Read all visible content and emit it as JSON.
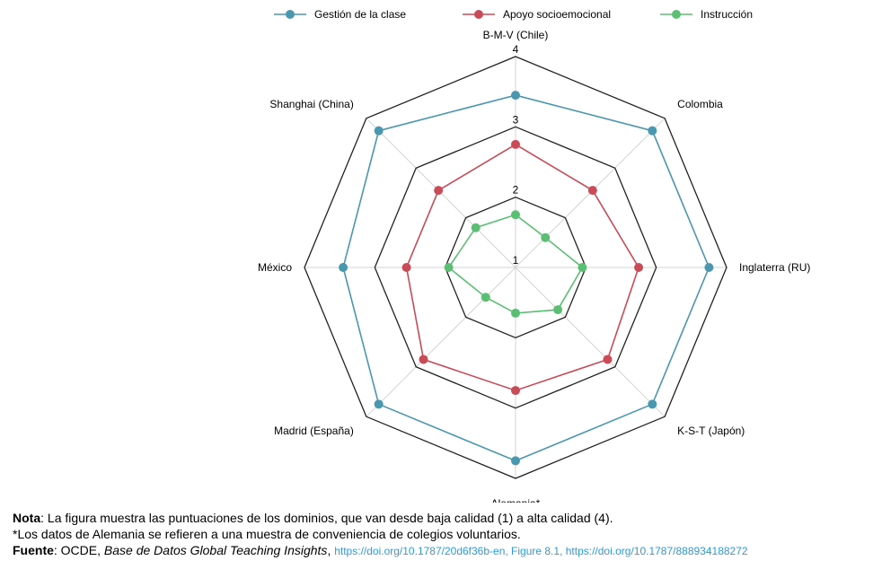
{
  "chart_data": {
    "type": "radar",
    "categories": [
      "B-M-V (Chile)",
      "Colombia",
      "Inglaterra (RU)",
      "K-S-T (Japón)",
      "Alemania*",
      "Madrid (España)",
      "México",
      "Shanghai (China)"
    ],
    "rlim": [
      1,
      4
    ],
    "ticks": [
      "1",
      "2",
      "3",
      "4"
    ],
    "grid": true,
    "legend_position": "top",
    "series": [
      {
        "name": "Gestión de la clase",
        "color": "#4a97b0",
        "values": [
          3.45,
          3.75,
          3.75,
          3.75,
          3.75,
          3.75,
          3.45,
          3.75
        ]
      },
      {
        "name": "Apoyo socioemocional",
        "color": "#c94b57",
        "values": [
          2.75,
          2.55,
          2.75,
          2.85,
          2.75,
          2.85,
          2.55,
          2.55
        ]
      },
      {
        "name": "Instrucción",
        "color": "#5bbf73",
        "values": [
          1.75,
          1.6,
          1.95,
          1.85,
          1.65,
          1.6,
          1.95,
          1.8
        ]
      }
    ]
  },
  "notes": {
    "nota_label": "Nota",
    "nota_text": ": La figura muestra las puntuaciones de los dominios, que van desde baja calidad (1) a alta calidad (4).",
    "asterisk_text": "*Los datos de Alemania se refieren a una muestra de conveniencia de colegios voluntarios.",
    "fuente_label": "Fuente",
    "fuente_text": ": OCDE, ",
    "fuente_italic": "Base de Datos Global Teaching Insights",
    "fuente_comma": ", ",
    "fuente_links": "https://doi.org/10.1787/20d6f36b-en, Figure 8.1, https://doi.org/10.1787/888934188272"
  }
}
